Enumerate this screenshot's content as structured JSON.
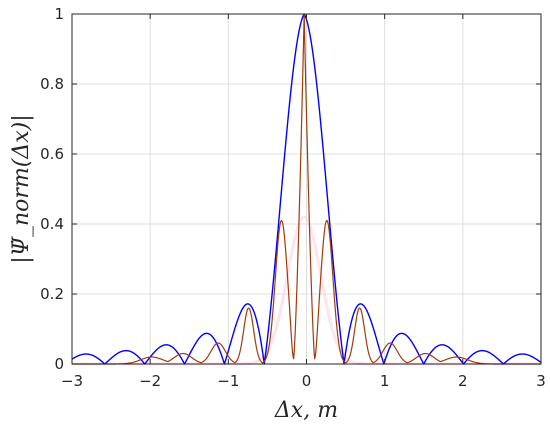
{
  "chart_data": {
    "type": "line",
    "title": "",
    "xlabel": "Δx, m",
    "ylabel": "|Ψ̇_norm(Δx)|",
    "xlim": [
      -3,
      3
    ],
    "ylim": [
      0,
      1
    ],
    "x_ticks": [
      "−3",
      "−2",
      "−1",
      "0",
      "1",
      "2",
      "3"
    ],
    "y_ticks": [
      "0",
      "0.2",
      "0.4",
      "0.6",
      "0.8",
      "1"
    ],
    "grid": true,
    "legend": "none",
    "series": [
      {
        "color": "#0000ff",
        "shape": "abs-sinc",
        "peak_x": -0.03,
        "peak_value": 1.0,
        "first_null_x": 0.48,
        "approx_points": [
          [
            -3,
            0.0
          ],
          [
            -2.85,
            0.06
          ],
          [
            -2.35,
            0.07
          ],
          [
            -1.85,
            0.1
          ],
          [
            -1.22,
            0.13
          ],
          [
            -0.73,
            0.22
          ],
          [
            -0.03,
            1.0
          ],
          [
            0.66,
            0.22
          ],
          [
            1.15,
            0.13
          ],
          [
            1.68,
            0.1
          ],
          [
            2.18,
            0.07
          ],
          [
            2.7,
            0.06
          ],
          [
            3,
            0.0
          ]
        ]
      },
      {
        "color": "#a03c0a",
        "shape": "main-lobe-with-sidelobes",
        "peak_x": -0.03,
        "peak_value": 1.0,
        "approx_points": [
          [
            -3,
            0.0
          ],
          [
            -2.6,
            0.01
          ],
          [
            -1.9,
            0.02
          ],
          [
            -1.6,
            0.03
          ],
          [
            -1.13,
            0.06
          ],
          [
            -0.75,
            0.16
          ],
          [
            -0.55,
            0.0
          ],
          [
            -0.28,
            0.41
          ],
          [
            -0.14,
            0.1
          ],
          [
            -0.03,
            1.0
          ],
          [
            0.09,
            0.1
          ],
          [
            0.26,
            0.41
          ],
          [
            0.48,
            0.0
          ],
          [
            0.67,
            0.16
          ],
          [
            1.05,
            0.06
          ],
          [
            1.5,
            0.03
          ],
          [
            1.9,
            0.02
          ],
          [
            2.6,
            0.01
          ],
          [
            3,
            0.0
          ]
        ]
      },
      {
        "color": "#ffc8e0",
        "shape": "faint-envelope",
        "approx_points": [
          [
            -0.5,
            0.1
          ],
          [
            -0.28,
            0.42
          ],
          [
            0,
            1.0
          ],
          [
            0.28,
            0.42
          ],
          [
            0.5,
            0.1
          ]
        ]
      }
    ]
  }
}
